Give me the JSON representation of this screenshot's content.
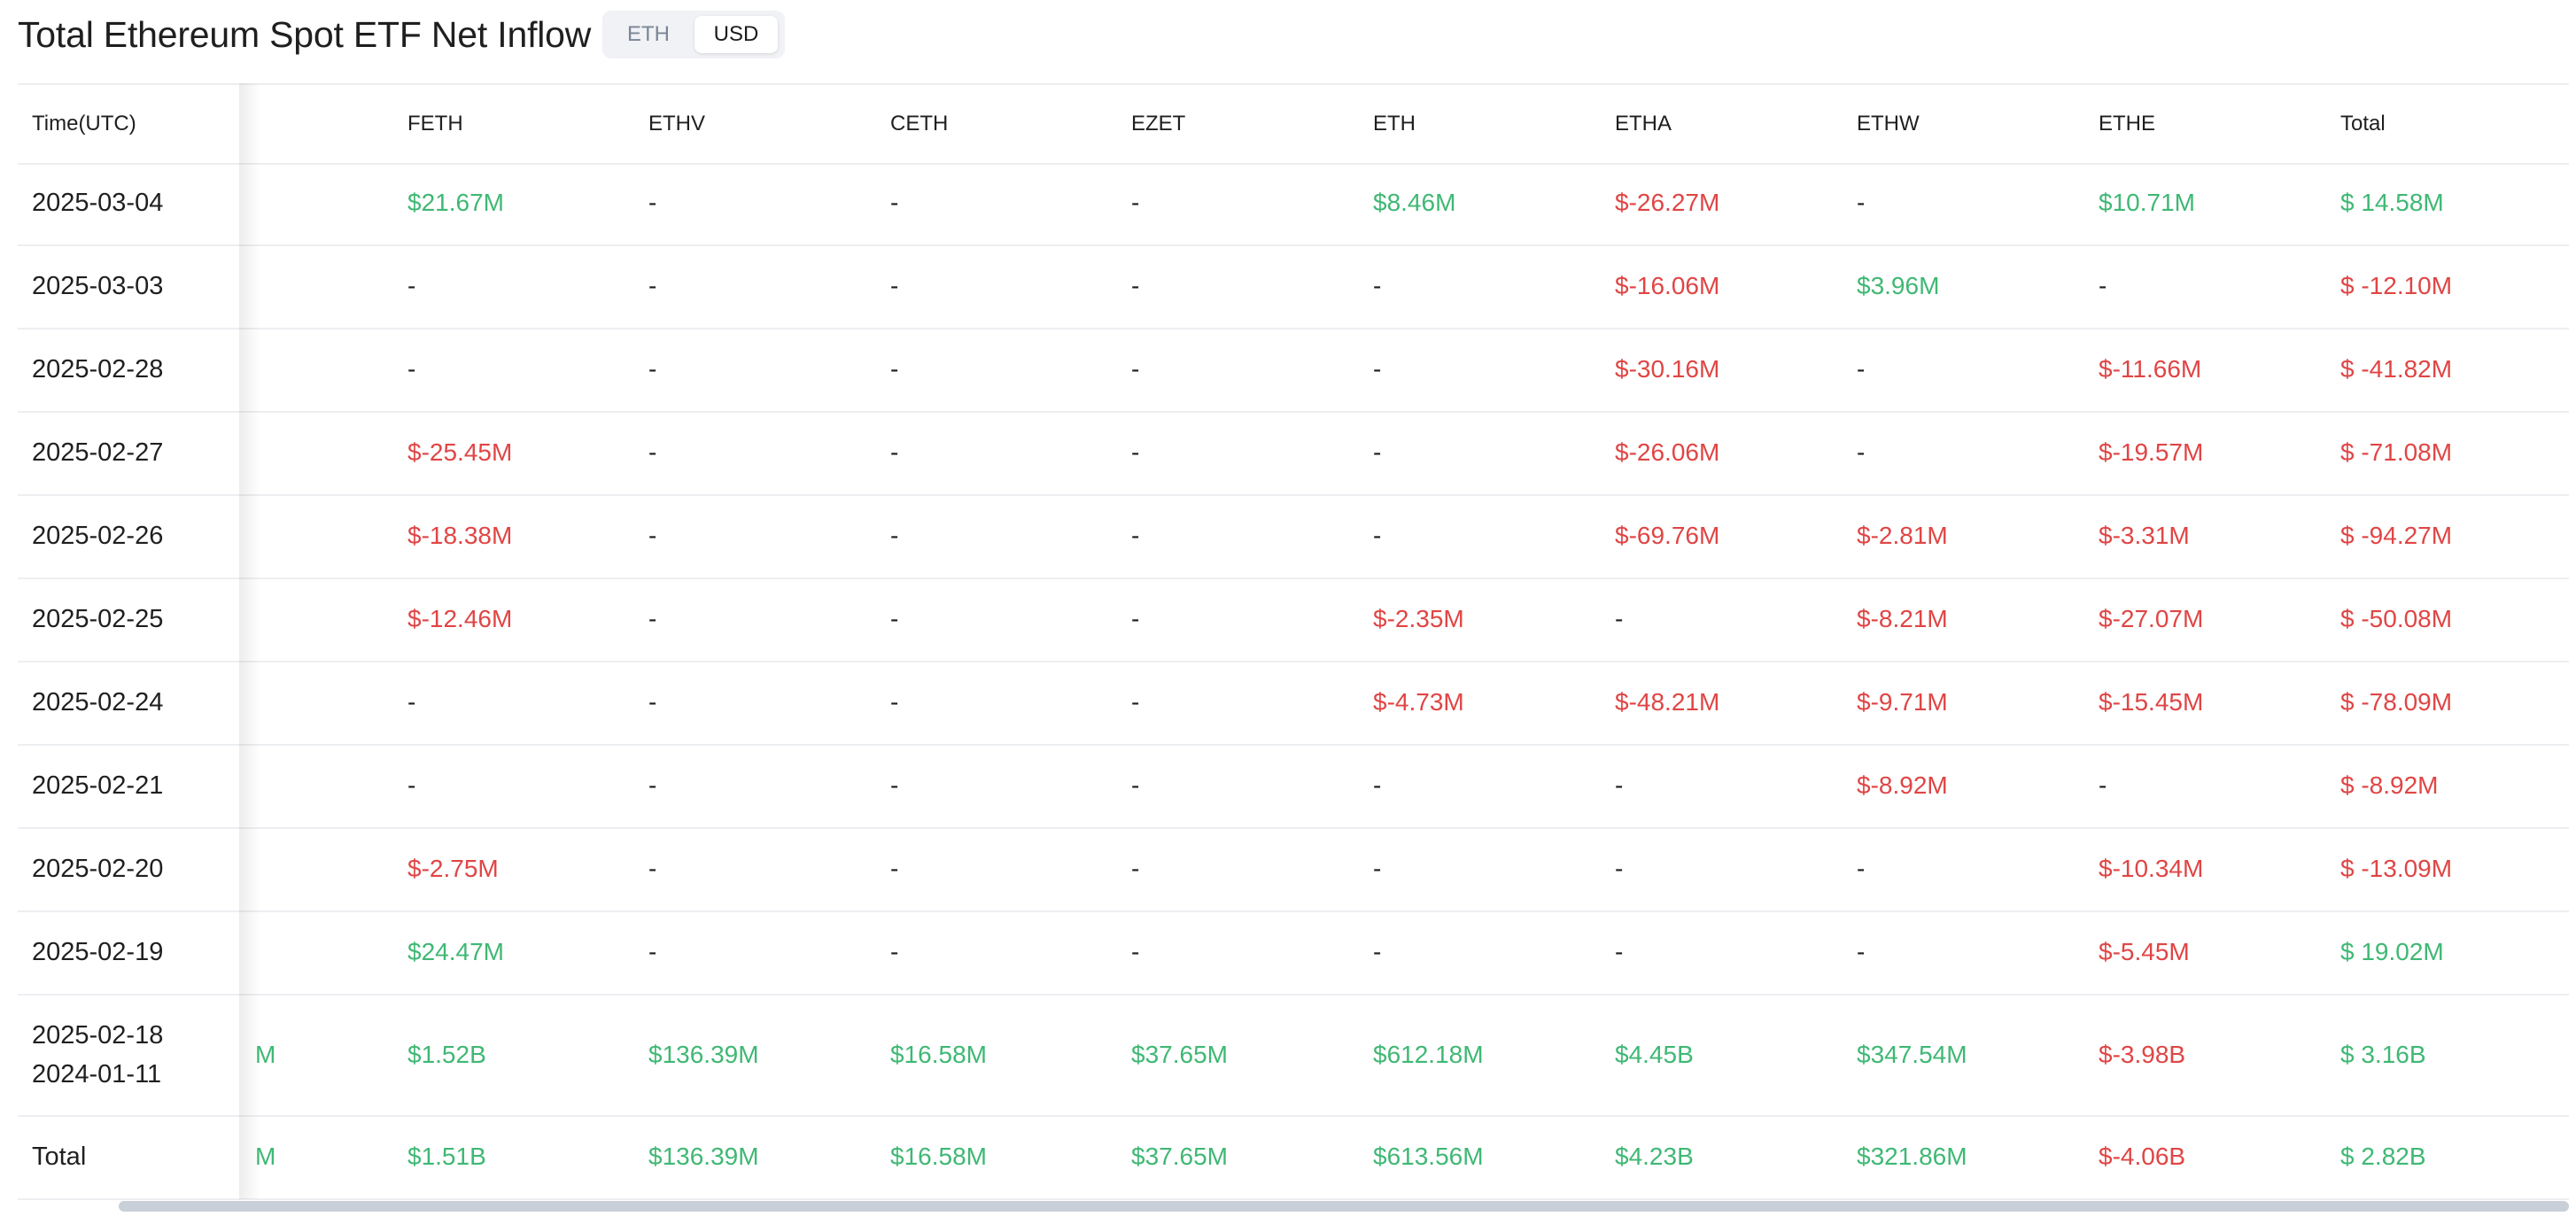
{
  "title": "Total Ethereum Spot ETF Net Inflow",
  "toggle": {
    "options": [
      "ETH",
      "USD"
    ],
    "selected": "USD"
  },
  "colors": {
    "positive": "#3fb874",
    "negative": "#e04545",
    "border": "#eceef1"
  },
  "table": {
    "headers": [
      "Time(UTC)",
      "FETH",
      "ETHV",
      "CETH",
      "EZET",
      "ETH",
      "ETHA",
      "ETHW",
      "ETHE",
      "Total"
    ],
    "rows": [
      {
        "date": "2025-03-04",
        "cells": [
          {
            "t": "",
            "s": ""
          },
          {
            "t": "$21.67M",
            "s": "pos"
          },
          {
            "t": "-",
            "s": "dash"
          },
          {
            "t": "-",
            "s": "dash"
          },
          {
            "t": "-",
            "s": "dash"
          },
          {
            "t": "$8.46M",
            "s": "pos"
          },
          {
            "t": "$-26.27M",
            "s": "neg"
          },
          {
            "t": "-",
            "s": "dash"
          },
          {
            "t": "$10.71M",
            "s": "pos"
          },
          {
            "t": "$ 14.58M",
            "s": "pos"
          }
        ]
      },
      {
        "date": "2025-03-03",
        "cells": [
          {
            "t": "",
            "s": ""
          },
          {
            "t": "-",
            "s": "dash"
          },
          {
            "t": "-",
            "s": "dash"
          },
          {
            "t": "-",
            "s": "dash"
          },
          {
            "t": "-",
            "s": "dash"
          },
          {
            "t": "-",
            "s": "dash"
          },
          {
            "t": "$-16.06M",
            "s": "neg"
          },
          {
            "t": "$3.96M",
            "s": "pos"
          },
          {
            "t": "-",
            "s": "dash"
          },
          {
            "t": "$ -12.10M",
            "s": "neg"
          }
        ]
      },
      {
        "date": "2025-02-28",
        "cells": [
          {
            "t": "",
            "s": ""
          },
          {
            "t": "-",
            "s": "dash"
          },
          {
            "t": "-",
            "s": "dash"
          },
          {
            "t": "-",
            "s": "dash"
          },
          {
            "t": "-",
            "s": "dash"
          },
          {
            "t": "-",
            "s": "dash"
          },
          {
            "t": "$-30.16M",
            "s": "neg"
          },
          {
            "t": "-",
            "s": "dash"
          },
          {
            "t": "$-11.66M",
            "s": "neg"
          },
          {
            "t": "$ -41.82M",
            "s": "neg"
          }
        ]
      },
      {
        "date": "2025-02-27",
        "cells": [
          {
            "t": "",
            "s": ""
          },
          {
            "t": "$-25.45M",
            "s": "neg"
          },
          {
            "t": "-",
            "s": "dash"
          },
          {
            "t": "-",
            "s": "dash"
          },
          {
            "t": "-",
            "s": "dash"
          },
          {
            "t": "-",
            "s": "dash"
          },
          {
            "t": "$-26.06M",
            "s": "neg"
          },
          {
            "t": "-",
            "s": "dash"
          },
          {
            "t": "$-19.57M",
            "s": "neg"
          },
          {
            "t": "$ -71.08M",
            "s": "neg"
          }
        ]
      },
      {
        "date": "2025-02-26",
        "cells": [
          {
            "t": "",
            "s": ""
          },
          {
            "t": "$-18.38M",
            "s": "neg"
          },
          {
            "t": "-",
            "s": "dash"
          },
          {
            "t": "-",
            "s": "dash"
          },
          {
            "t": "-",
            "s": "dash"
          },
          {
            "t": "-",
            "s": "dash"
          },
          {
            "t": "$-69.76M",
            "s": "neg"
          },
          {
            "t": "$-2.81M",
            "s": "neg"
          },
          {
            "t": "$-3.31M",
            "s": "neg"
          },
          {
            "t": "$ -94.27M",
            "s": "neg"
          }
        ]
      },
      {
        "date": "2025-02-25",
        "cells": [
          {
            "t": "",
            "s": ""
          },
          {
            "t": "$-12.46M",
            "s": "neg"
          },
          {
            "t": "-",
            "s": "dash"
          },
          {
            "t": "-",
            "s": "dash"
          },
          {
            "t": "-",
            "s": "dash"
          },
          {
            "t": "$-2.35M",
            "s": "neg"
          },
          {
            "t": "-",
            "s": "dash"
          },
          {
            "t": "$-8.21M",
            "s": "neg"
          },
          {
            "t": "$-27.07M",
            "s": "neg"
          },
          {
            "t": "$ -50.08M",
            "s": "neg"
          }
        ]
      },
      {
        "date": "2025-02-24",
        "cells": [
          {
            "t": "",
            "s": ""
          },
          {
            "t": "-",
            "s": "dash"
          },
          {
            "t": "-",
            "s": "dash"
          },
          {
            "t": "-",
            "s": "dash"
          },
          {
            "t": "-",
            "s": "dash"
          },
          {
            "t": "$-4.73M",
            "s": "neg"
          },
          {
            "t": "$-48.21M",
            "s": "neg"
          },
          {
            "t": "$-9.71M",
            "s": "neg"
          },
          {
            "t": "$-15.45M",
            "s": "neg"
          },
          {
            "t": "$ -78.09M",
            "s": "neg"
          }
        ]
      },
      {
        "date": "2025-02-21",
        "cells": [
          {
            "t": "",
            "s": ""
          },
          {
            "t": "-",
            "s": "dash"
          },
          {
            "t": "-",
            "s": "dash"
          },
          {
            "t": "-",
            "s": "dash"
          },
          {
            "t": "-",
            "s": "dash"
          },
          {
            "t": "-",
            "s": "dash"
          },
          {
            "t": "-",
            "s": "dash"
          },
          {
            "t": "$-8.92M",
            "s": "neg"
          },
          {
            "t": "-",
            "s": "dash"
          },
          {
            "t": "$ -8.92M",
            "s": "neg"
          }
        ]
      },
      {
        "date": "2025-02-20",
        "cells": [
          {
            "t": "",
            "s": ""
          },
          {
            "t": "$-2.75M",
            "s": "neg"
          },
          {
            "t": "-",
            "s": "dash"
          },
          {
            "t": "-",
            "s": "dash"
          },
          {
            "t": "-",
            "s": "dash"
          },
          {
            "t": "-",
            "s": "dash"
          },
          {
            "t": "-",
            "s": "dash"
          },
          {
            "t": "-",
            "s": "dash"
          },
          {
            "t": "$-10.34M",
            "s": "neg"
          },
          {
            "t": "$ -13.09M",
            "s": "neg"
          }
        ]
      },
      {
        "date": "2025-02-19",
        "cells": [
          {
            "t": "",
            "s": ""
          },
          {
            "t": "$24.47M",
            "s": "pos"
          },
          {
            "t": "-",
            "s": "dash"
          },
          {
            "t": "-",
            "s": "dash"
          },
          {
            "t": "-",
            "s": "dash"
          },
          {
            "t": "-",
            "s": "dash"
          },
          {
            "t": "-",
            "s": "dash"
          },
          {
            "t": "-",
            "s": "dash"
          },
          {
            "t": "$-5.45M",
            "s": "neg"
          },
          {
            "t": "$ 19.02M",
            "s": "pos"
          }
        ]
      },
      {
        "date": "2025-02-18",
        "date2": "2024-01-11",
        "cells": [
          {
            "t": "M",
            "s": "pos"
          },
          {
            "t": "$1.52B",
            "s": "pos"
          },
          {
            "t": "$136.39M",
            "s": "pos"
          },
          {
            "t": "$16.58M",
            "s": "pos"
          },
          {
            "t": "$37.65M",
            "s": "pos"
          },
          {
            "t": "$612.18M",
            "s": "pos"
          },
          {
            "t": "$4.45B",
            "s": "pos"
          },
          {
            "t": "$347.54M",
            "s": "pos"
          },
          {
            "t": "$-3.98B",
            "s": "neg"
          },
          {
            "t": "$ 3.16B",
            "s": "pos"
          }
        ]
      },
      {
        "date": "Total",
        "cells": [
          {
            "t": "M",
            "s": "pos"
          },
          {
            "t": "$1.51B",
            "s": "pos"
          },
          {
            "t": "$136.39M",
            "s": "pos"
          },
          {
            "t": "$16.58M",
            "s": "pos"
          },
          {
            "t": "$37.65M",
            "s": "pos"
          },
          {
            "t": "$613.56M",
            "s": "pos"
          },
          {
            "t": "$4.23B",
            "s": "pos"
          },
          {
            "t": "$321.86M",
            "s": "pos"
          },
          {
            "t": "$-4.06B",
            "s": "neg"
          },
          {
            "t": "$ 2.82B",
            "s": "pos"
          }
        ]
      }
    ]
  }
}
